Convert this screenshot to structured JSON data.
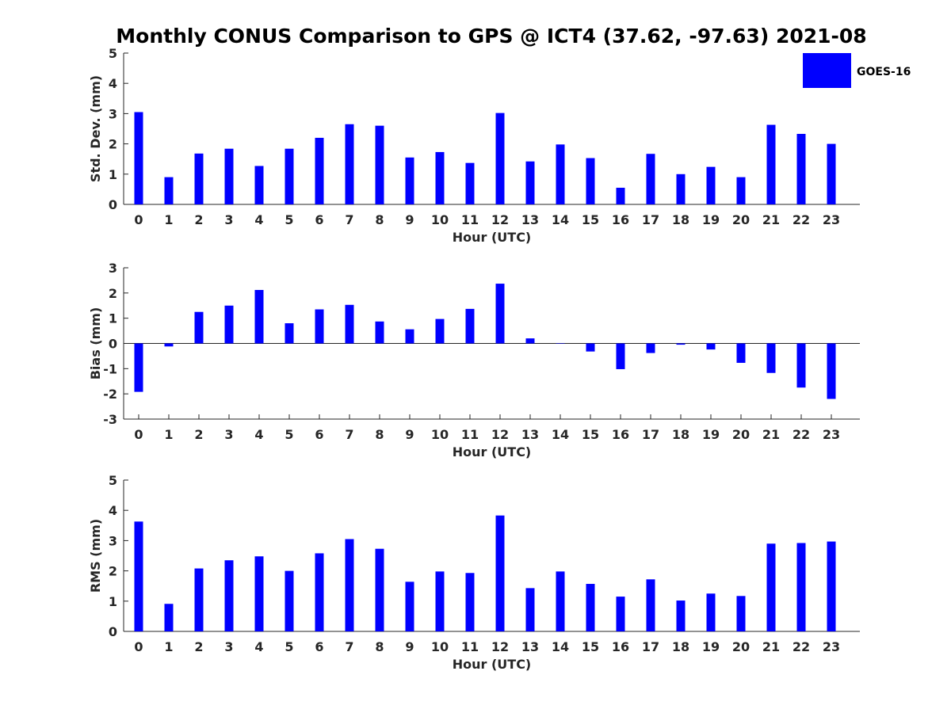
{
  "title": "Monthly CONUS Comparison to GPS @ ICT4 (37.62, -97.63) 2021-08",
  "colors": {
    "bar": "#0000ff",
    "axis": "#262626"
  },
  "legend": {
    "label": "GOES-16",
    "placement": "top-right"
  },
  "chart_data": [
    {
      "type": "bar",
      "xlabel": "Hour (UTC)",
      "ylabel": "Std. Dev. (mm)",
      "ylim": [
        0,
        5
      ],
      "yticks": [
        0,
        1,
        2,
        3,
        4,
        5
      ],
      "categories": [
        "0",
        "1",
        "2",
        "3",
        "4",
        "5",
        "6",
        "7",
        "8",
        "9",
        "10",
        "11",
        "12",
        "13",
        "14",
        "15",
        "16",
        "17",
        "18",
        "19",
        "20",
        "21",
        "22",
        "23"
      ],
      "series": [
        {
          "name": "GOES-16",
          "values": [
            3.05,
            0.9,
            1.68,
            1.84,
            1.27,
            1.84,
            2.2,
            2.65,
            2.6,
            1.55,
            1.73,
            1.37,
            3.02,
            1.42,
            1.98,
            1.53,
            0.55,
            1.67,
            1.0,
            1.24,
            0.9,
            2.63,
            2.33,
            2.0
          ]
        }
      ],
      "grid": false
    },
    {
      "type": "bar",
      "xlabel": "Hour (UTC)",
      "ylabel": "Bias (mm)",
      "ylim": [
        -3,
        3
      ],
      "yticks": [
        -3,
        -2,
        -1,
        0,
        1,
        2,
        3
      ],
      "categories": [
        "0",
        "1",
        "2",
        "3",
        "4",
        "5",
        "6",
        "7",
        "8",
        "9",
        "10",
        "11",
        "12",
        "13",
        "14",
        "15",
        "16",
        "17",
        "18",
        "19",
        "20",
        "21",
        "22",
        "23"
      ],
      "series": [
        {
          "name": "GOES-16",
          "values": [
            -1.92,
            -0.12,
            1.25,
            1.5,
            2.12,
            0.8,
            1.35,
            1.53,
            0.87,
            0.56,
            0.97,
            1.37,
            2.37,
            0.2,
            0.0,
            -0.32,
            -1.02,
            -0.38,
            -0.05,
            -0.24,
            -0.77,
            -1.17,
            -1.75,
            -2.2
          ]
        }
      ],
      "grid": false
    },
    {
      "type": "bar",
      "xlabel": "Hour (UTC)",
      "ylabel": "RMS (mm)",
      "ylim": [
        0,
        5
      ],
      "yticks": [
        0,
        1,
        2,
        3,
        4,
        5
      ],
      "categories": [
        "0",
        "1",
        "2",
        "3",
        "4",
        "5",
        "6",
        "7",
        "8",
        "9",
        "10",
        "11",
        "12",
        "13",
        "14",
        "15",
        "16",
        "17",
        "18",
        "19",
        "20",
        "21",
        "22",
        "23"
      ],
      "series": [
        {
          "name": "GOES-16",
          "values": [
            3.63,
            0.91,
            2.08,
            2.35,
            2.48,
            2.0,
            2.58,
            3.05,
            2.73,
            1.64,
            1.98,
            1.93,
            3.83,
            1.43,
            1.98,
            1.57,
            1.15,
            1.72,
            1.02,
            1.25,
            1.17,
            2.9,
            2.92,
            2.97
          ]
        }
      ],
      "grid": false
    }
  ]
}
